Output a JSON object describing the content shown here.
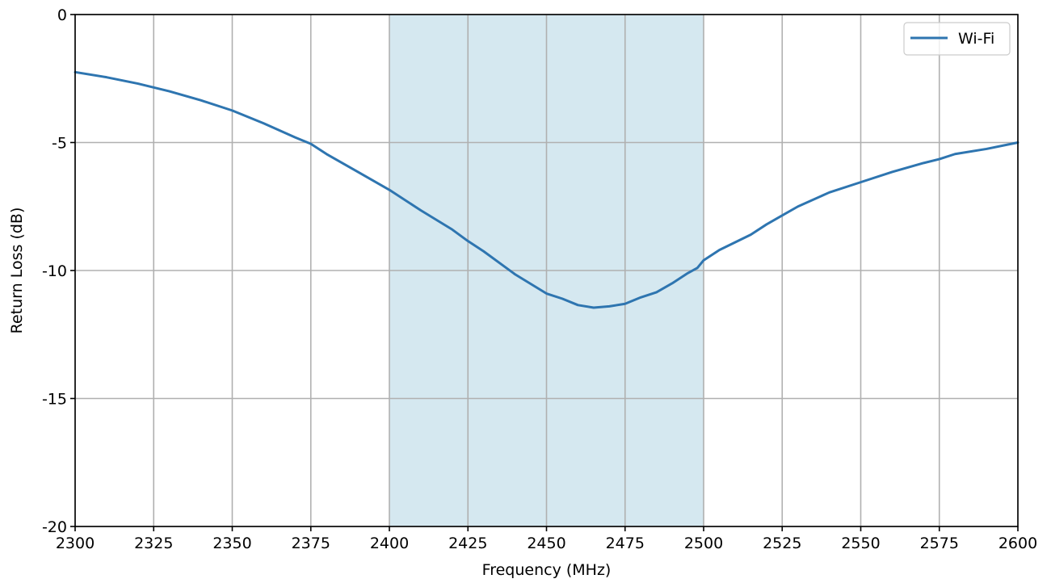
{
  "chart_data": {
    "type": "line",
    "xlabel": "Frequency (MHz)",
    "ylabel": "Return Loss (dB)",
    "xlim": [
      2300,
      2600
    ],
    "ylim": [
      -20,
      0
    ],
    "x_ticks": [
      2300,
      2325,
      2350,
      2375,
      2400,
      2425,
      2450,
      2475,
      2500,
      2525,
      2550,
      2575,
      2600
    ],
    "y_ticks": [
      0,
      -5,
      -10,
      -15,
      -20
    ],
    "grid": true,
    "legend_position": "top-right",
    "shaded_band": {
      "x_start": 2400,
      "x_end": 2500,
      "color": "#d5e8f0"
    },
    "series": [
      {
        "name": "Wi-Fi",
        "color": "#2e75b0",
        "points": [
          [
            2300,
            -2.25
          ],
          [
            2310,
            -2.45
          ],
          [
            2320,
            -2.7
          ],
          [
            2325,
            -2.85
          ],
          [
            2330,
            -3.0
          ],
          [
            2340,
            -3.35
          ],
          [
            2350,
            -3.75
          ],
          [
            2360,
            -4.25
          ],
          [
            2370,
            -4.8
          ],
          [
            2375,
            -5.05
          ],
          [
            2380,
            -5.45
          ],
          [
            2390,
            -6.15
          ],
          [
            2400,
            -6.85
          ],
          [
            2410,
            -7.65
          ],
          [
            2420,
            -8.4
          ],
          [
            2425,
            -8.85
          ],
          [
            2430,
            -9.25
          ],
          [
            2440,
            -10.15
          ],
          [
            2450,
            -10.9
          ],
          [
            2455,
            -11.1
          ],
          [
            2460,
            -11.35
          ],
          [
            2465,
            -11.45
          ],
          [
            2470,
            -11.4
          ],
          [
            2475,
            -11.3
          ],
          [
            2480,
            -11.05
          ],
          [
            2485,
            -10.85
          ],
          [
            2490,
            -10.5
          ],
          [
            2495,
            -10.1
          ],
          [
            2498,
            -9.9
          ],
          [
            2500,
            -9.6
          ],
          [
            2505,
            -9.2
          ],
          [
            2510,
            -8.9
          ],
          [
            2515,
            -8.6
          ],
          [
            2520,
            -8.2
          ],
          [
            2525,
            -7.85
          ],
          [
            2530,
            -7.5
          ],
          [
            2540,
            -6.95
          ],
          [
            2550,
            -6.55
          ],
          [
            2560,
            -6.15
          ],
          [
            2570,
            -5.8
          ],
          [
            2575,
            -5.65
          ],
          [
            2580,
            -5.45
          ],
          [
            2590,
            -5.25
          ],
          [
            2600,
            -5.0
          ]
        ]
      }
    ]
  }
}
